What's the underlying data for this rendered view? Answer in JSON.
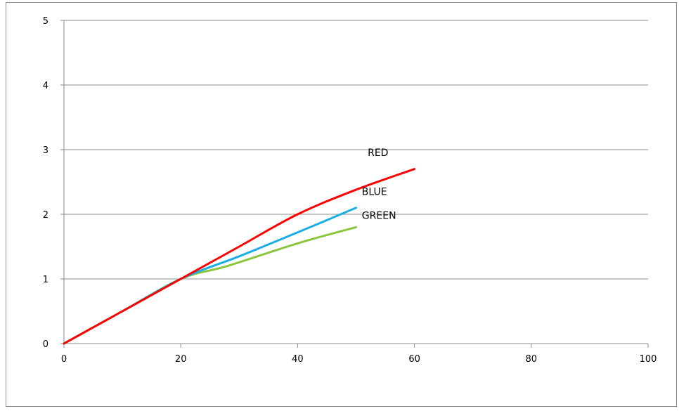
{
  "chart_data": {
    "type": "line",
    "title": "",
    "xlabel": "",
    "ylabel": "",
    "xlim": [
      0,
      100
    ],
    "ylim": [
      0,
      5
    ],
    "x_ticks": [
      0,
      20,
      40,
      60,
      80,
      100
    ],
    "y_ticks": [
      0,
      1,
      2,
      3,
      4,
      5
    ],
    "grid": "horizontal",
    "legend": "none",
    "series": [
      {
        "name": "RED",
        "color": "#ff0000",
        "points": [
          [
            0,
            0
          ],
          [
            10,
            0.5
          ],
          [
            20,
            1.0
          ],
          [
            30,
            1.5
          ],
          [
            40,
            2.0
          ],
          [
            50,
            2.38
          ],
          [
            60,
            2.7
          ]
        ],
        "label_at": [
          52,
          2.9
        ]
      },
      {
        "name": "BLUE",
        "color": "#1aaee5",
        "points": [
          [
            0,
            0
          ],
          [
            10,
            0.5
          ],
          [
            20,
            1.0
          ],
          [
            30,
            1.35
          ],
          [
            40,
            1.72
          ],
          [
            50,
            2.1
          ]
        ],
        "label_at": [
          51,
          2.3
        ]
      },
      {
        "name": "GREEN",
        "color": "#8cc63f",
        "points": [
          [
            0,
            0
          ],
          [
            10,
            0.5
          ],
          [
            20,
            1.0
          ],
          [
            28,
            1.2
          ],
          [
            40,
            1.55
          ],
          [
            50,
            1.8
          ]
        ],
        "label_at": [
          51,
          1.93
        ]
      }
    ]
  }
}
